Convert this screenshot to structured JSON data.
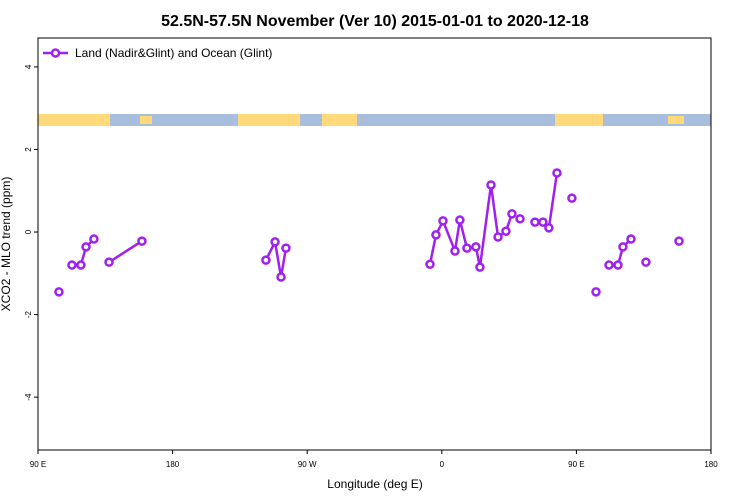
{
  "chart_data": {
    "type": "line",
    "title": "52.5N-57.5N November (Ver 10)   2015-01-01 to 2020-12-18",
    "x_label": "Longitude (deg E)",
    "y_label": "XCO2 - MLO trend (ppm)",
    "x": [
      104.0,
      null,
      112.7,
      118.7,
      122.1,
      127.4,
      null,
      137.5,
      159.5,
      null,
      242.4,
      248.5,
      252.5,
      255.8,
      null,
      352.1,
      356.1,
      360.8,
      368.8,
      372.1,
      376.8,
      382.8,
      385.5,
      392.9,
      397.6,
      402.9,
      406.9,
      null,
      412.3,
      null,
      422.3,
      427.6,
      431.6,
      437.0,
      null,
      447.0,
      null,
      463.1,
      null,
      471.8,
      477.8,
      481.1,
      486.5,
      null,
      496.5,
      null,
      518.6
    ],
    "series": [
      {
        "name": "Land (Nadir&Glint) and Ocean (Glint)",
        "color": "#a020f0",
        "values": [
          -1.45,
          null,
          -0.8,
          -0.8,
          -0.36,
          -0.17,
          null,
          -0.73,
          -0.22,
          null,
          -0.68,
          -0.24,
          -1.09,
          -0.39,
          null,
          -0.78,
          -0.07,
          0.27,
          -0.46,
          0.29,
          -0.39,
          -0.36,
          -0.85,
          1.14,
          -0.12,
          0.02,
          0.44,
          null,
          0.32,
          null,
          0.24,
          0.24,
          0.1,
          1.43,
          null,
          0.82,
          null,
          -1.45,
          null,
          -0.8,
          -0.8,
          -0.36,
          -0.17,
          null,
          -0.73,
          null,
          -0.22
        ]
      }
    ],
    "xlim": [
      90,
      540
    ],
    "xticks": [
      {
        "value": 90,
        "label": "90 E"
      },
      180,
      {
        "value": 270,
        "label": "90 W"
      },
      {
        "value": 360,
        "label": "0"
      },
      {
        "value": 450,
        "label": "90 E"
      },
      {
        "value": 540,
        "label": "180"
      }
    ],
    "ylim": [
      -5.28,
      4.7
    ],
    "yticks": [
      -4,
      -2,
      0,
      2,
      4
    ],
    "legend": "top-left"
  }
}
